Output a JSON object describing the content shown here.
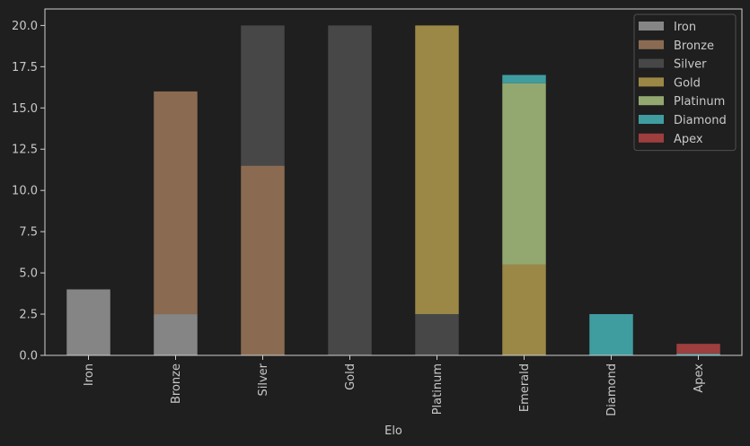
{
  "chart_data": {
    "type": "bar",
    "stacked": true,
    "categories": [
      "Iron",
      "Bronze",
      "Silver",
      "Gold",
      "Platinum",
      "Emerald",
      "Diamond",
      "Apex"
    ],
    "series": [
      {
        "name": "Iron",
        "color": "#858585",
        "values": [
          4,
          2.5,
          0,
          0,
          0,
          0,
          0,
          0
        ]
      },
      {
        "name": "Bronze",
        "color": "#8a6b52",
        "values": [
          0,
          13.5,
          11.5,
          0,
          0,
          0,
          0,
          0
        ]
      },
      {
        "name": "Silver",
        "color": "#474747",
        "values": [
          0,
          0,
          8.5,
          20,
          2.5,
          0,
          0,
          0
        ]
      },
      {
        "name": "Gold",
        "color": "#9c8846",
        "values": [
          0,
          0,
          0,
          0,
          17.5,
          5.5,
          0,
          0
        ]
      },
      {
        "name": "Platinum",
        "color": "#93a870",
        "values": [
          0,
          0,
          0,
          0,
          0,
          11,
          0,
          0
        ]
      },
      {
        "name": "Diamond",
        "color": "#3f9da0",
        "values": [
          0,
          0,
          0,
          0,
          0,
          0.5,
          2.5,
          0.1
        ]
      },
      {
        "name": "Apex",
        "color": "#9e3e3e",
        "values": [
          0,
          0,
          0,
          0,
          0,
          0,
          0,
          0.6
        ]
      }
    ],
    "title": "",
    "xlabel": "Elo",
    "ylabel": "",
    "ylim": [
      0,
      21
    ],
    "yticks": [
      "0.0",
      "2.5",
      "5.0",
      "7.5",
      "10.0",
      "12.5",
      "15.0",
      "17.5",
      "20.0"
    ],
    "grid": false,
    "legend_position": "top-right"
  }
}
